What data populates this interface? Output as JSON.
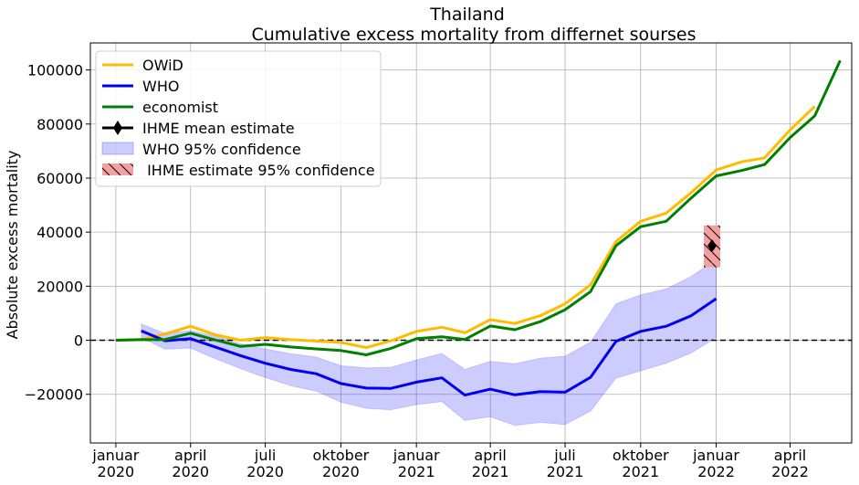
{
  "chart_data": {
    "type": "line",
    "title": "Thailand",
    "subtitle": "Cumulative excess mortality from differnet sourses",
    "xlabel": "",
    "ylabel": "Absolute excess mortality",
    "x_range": [
      "2019-12-01",
      "2022-06-15"
    ],
    "ylim": [
      -38000,
      110000
    ],
    "y_ticks": [
      -20000,
      0,
      20000,
      40000,
      60000,
      80000,
      100000
    ],
    "x_ticks": [
      {
        "date": "2020-01-01",
        "line1": "januar",
        "line2": "2020"
      },
      {
        "date": "2020-04-01",
        "line1": "april",
        "line2": "2020"
      },
      {
        "date": "2020-07-01",
        "line1": "juli",
        "line2": "2020"
      },
      {
        "date": "2020-10-01",
        "line1": "oktober",
        "line2": "2020"
      },
      {
        "date": "2021-01-01",
        "line1": "januar",
        "line2": "2021"
      },
      {
        "date": "2021-04-01",
        "line1": "april",
        "line2": "2021"
      },
      {
        "date": "2021-07-01",
        "line1": "juli",
        "line2": "2021"
      },
      {
        "date": "2021-10-01",
        "line1": "oktober",
        "line2": "2021"
      },
      {
        "date": "2022-01-01",
        "line1": "januar",
        "line2": "2022"
      },
      {
        "date": "2022-04-01",
        "line1": "april",
        "line2": "2022"
      }
    ],
    "grid": true,
    "legend_position": "top-left",
    "zero_line": {
      "value": 0,
      "style": "dashed",
      "color": "#000000"
    },
    "series": [
      {
        "name": "OWiD",
        "color": "#ffbb00",
        "points": [
          [
            "2020-01-01",
            0
          ],
          [
            "2020-02-01",
            300
          ],
          [
            "2020-03-01",
            2300
          ],
          [
            "2020-04-01",
            5200
          ],
          [
            "2020-05-01",
            2000
          ],
          [
            "2020-06-01",
            0
          ],
          [
            "2020-07-01",
            1000
          ],
          [
            "2020-08-01",
            200
          ],
          [
            "2020-09-01",
            -300
          ],
          [
            "2020-10-01",
            -800
          ],
          [
            "2020-11-01",
            -2700
          ],
          [
            "2020-12-01",
            -200
          ],
          [
            "2021-01-01",
            3300
          ],
          [
            "2021-02-01",
            4800
          ],
          [
            "2021-03-01",
            2800
          ],
          [
            "2021-04-01",
            7600
          ],
          [
            "2021-05-01",
            6200
          ],
          [
            "2021-06-01",
            9100
          ],
          [
            "2021-07-01",
            13500
          ],
          [
            "2021-08-01",
            20500
          ],
          [
            "2021-09-01",
            36500
          ],
          [
            "2021-10-01",
            44000
          ],
          [
            "2021-11-01",
            47000
          ],
          [
            "2021-12-01",
            54500
          ],
          [
            "2022-01-01",
            63000
          ],
          [
            "2022-02-01",
            66000
          ],
          [
            "2022-03-01",
            67500
          ],
          [
            "2022-04-01",
            77800
          ],
          [
            "2022-05-01",
            86500
          ]
        ]
      },
      {
        "name": "WHO",
        "color": "#0000ee",
        "points": [
          [
            "2020-02-01",
            3500
          ],
          [
            "2020-03-01",
            -200
          ],
          [
            "2020-04-01",
            600
          ],
          [
            "2020-05-01",
            -2500
          ],
          [
            "2020-06-01",
            -5700
          ],
          [
            "2020-07-01",
            -8500
          ],
          [
            "2020-08-01",
            -10800
          ],
          [
            "2020-09-01",
            -12400
          ],
          [
            "2020-10-01",
            -16000
          ],
          [
            "2020-11-01",
            -17700
          ],
          [
            "2020-12-01",
            -17800
          ],
          [
            "2021-01-01",
            -15500
          ],
          [
            "2021-02-01",
            -13900
          ],
          [
            "2021-03-01",
            -20300
          ],
          [
            "2021-04-01",
            -18100
          ],
          [
            "2021-05-01",
            -20200
          ],
          [
            "2021-06-01",
            -19000
          ],
          [
            "2021-07-01",
            -19200
          ],
          [
            "2021-08-01",
            -13700
          ],
          [
            "2021-09-01",
            -400
          ],
          [
            "2021-10-01",
            3300
          ],
          [
            "2021-11-01",
            5200
          ],
          [
            "2021-12-01",
            9000
          ],
          [
            "2022-01-01",
            15400
          ]
        ]
      },
      {
        "name": "economist",
        "color": "#008000",
        "points": [
          [
            "2020-01-01",
            0
          ],
          [
            "2020-02-01",
            200
          ],
          [
            "2020-03-01",
            300
          ],
          [
            "2020-04-01",
            2600
          ],
          [
            "2020-05-01",
            100
          ],
          [
            "2020-06-01",
            -2300
          ],
          [
            "2020-07-01",
            -1500
          ],
          [
            "2020-08-01",
            -2500
          ],
          [
            "2020-09-01",
            -3200
          ],
          [
            "2020-10-01",
            -3800
          ],
          [
            "2020-11-01",
            -5400
          ],
          [
            "2020-12-01",
            -3000
          ],
          [
            "2021-01-01",
            600
          ],
          [
            "2021-02-01",
            1300
          ],
          [
            "2021-03-01",
            300
          ],
          [
            "2021-04-01",
            5300
          ],
          [
            "2021-05-01",
            3900
          ],
          [
            "2021-06-01",
            6900
          ],
          [
            "2021-07-01",
            11300
          ],
          [
            "2021-08-01",
            18000
          ],
          [
            "2021-09-01",
            35000
          ],
          [
            "2021-10-01",
            42000
          ],
          [
            "2021-11-01",
            44000
          ],
          [
            "2021-12-01",
            52500
          ],
          [
            "2022-01-01",
            60800
          ],
          [
            "2022-02-01",
            62800
          ],
          [
            "2022-03-01",
            65000
          ],
          [
            "2022-04-01",
            75000
          ],
          [
            "2022-05-01",
            83000
          ],
          [
            "2022-06-01",
            103500
          ]
        ]
      }
    ],
    "who_confidence": {
      "name": "WHO 95% confidence",
      "color": "#0000ff",
      "opacity": 0.2,
      "upper": [
        [
          "2020-02-01",
          6000
        ],
        [
          "2020-03-01",
          2500
        ],
        [
          "2020-04-01",
          3600
        ],
        [
          "2020-05-01",
          1500
        ],
        [
          "2020-06-01",
          -1300
        ],
        [
          "2020-07-01",
          -3200
        ],
        [
          "2020-08-01",
          -5000
        ],
        [
          "2020-09-01",
          -6200
        ],
        [
          "2020-10-01",
          -9400
        ],
        [
          "2020-11-01",
          -10200
        ],
        [
          "2020-12-01",
          -10000
        ],
        [
          "2021-01-01",
          -7300
        ],
        [
          "2021-02-01",
          -4900
        ],
        [
          "2021-03-01",
          -10800
        ],
        [
          "2021-04-01",
          -7800
        ],
        [
          "2021-05-01",
          -8700
        ],
        [
          "2021-06-01",
          -6600
        ],
        [
          "2021-07-01",
          -5900
        ],
        [
          "2021-08-01",
          -700
        ],
        [
          "2021-09-01",
          13500
        ],
        [
          "2021-10-01",
          16800
        ],
        [
          "2021-11-01",
          19000
        ],
        [
          "2021-12-01",
          23500
        ],
        [
          "2022-01-01",
          30000
        ]
      ],
      "lower": [
        [
          "2020-02-01",
          1000
        ],
        [
          "2020-03-01",
          -3300
        ],
        [
          "2020-04-01",
          -2900
        ],
        [
          "2020-05-01",
          -6800
        ],
        [
          "2020-06-01",
          -10500
        ],
        [
          "2020-07-01",
          -13800
        ],
        [
          "2020-08-01",
          -16800
        ],
        [
          "2020-09-01",
          -18800
        ],
        [
          "2020-10-01",
          -22900
        ],
        [
          "2020-11-01",
          -25200
        ],
        [
          "2020-12-01",
          -25700
        ],
        [
          "2021-01-01",
          -23800
        ],
        [
          "2021-02-01",
          -22700
        ],
        [
          "2021-03-01",
          -29700
        ],
        [
          "2021-04-01",
          -28300
        ],
        [
          "2021-05-01",
          -31500
        ],
        [
          "2021-06-01",
          -30400
        ],
        [
          "2021-07-01",
          -31200
        ],
        [
          "2021-08-01",
          -26200
        ],
        [
          "2021-09-01",
          -14000
        ],
        [
          "2021-10-01",
          -11300
        ],
        [
          "2021-11-01",
          -8500
        ],
        [
          "2021-12-01",
          -4800
        ],
        [
          "2022-01-01",
          1000
        ]
      ]
    },
    "ihme": {
      "mean_name": "IHME mean estimate",
      "ci_name": " IHME estimate 95% confidence",
      "date": "2021-12-27",
      "mean": 35000,
      "lower": 27000,
      "upper": 42500,
      "box_color": "#f08080",
      "marker_color": "#000000"
    }
  }
}
